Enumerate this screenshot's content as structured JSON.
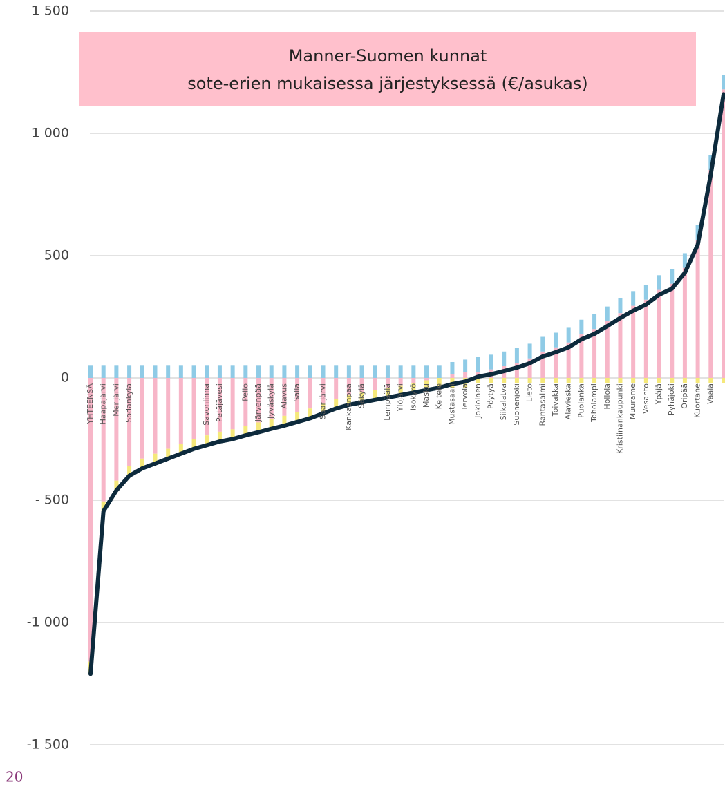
{
  "chart_data": {
    "type": "bar",
    "title_lines": [
      "Manner-Suomen kunnat",
      "sote-erien mukaisessa järjestyksessä (€/asukas)"
    ],
    "title_background": "#ffc0cc",
    "page_number": "20",
    "stacked": true,
    "categories": [
      "YHTEENSÄ",
      "Haapajärvi",
      "Merijärvi",
      "Sodankylä",
      null,
      null,
      null,
      null,
      null,
      "Savonlinna",
      "Petäjävesi",
      null,
      "Pello",
      "Järvenpää",
      "Jyväskylä",
      "Alavus",
      "Salla",
      null,
      "Saarijärvi",
      null,
      "Kankaanpää",
      "Säkylä",
      null,
      "Lempäälä",
      "Ylöjärvi",
      "Isokyrö",
      "Masku",
      "Keitele",
      "Mustasaari",
      "Tervola",
      "Jokioinen",
      "Pöytyä",
      "Siikalatva",
      "Suonenjoki",
      "Lieto",
      "Rantasalmi",
      "Toivakka",
      "Alavieska",
      "Puolanka",
      "Toholampi",
      "Hollola",
      "Kristiinankaupunki",
      "Muurame",
      "Vesanto",
      "Ypäjä",
      "Pyhäjoki",
      "Oripää",
      "Kuortane",
      "Vaala",
      null
    ],
    "series": [
      {
        "color": "#f7b6c8",
        "values": [
          -1160,
          -505,
          -420,
          -360,
          -330,
          -310,
          -290,
          -270,
          -250,
          -235,
          -220,
          -210,
          -195,
          -182,
          -168,
          -155,
          -140,
          -125,
          -105,
          -85,
          -70,
          -60,
          -50,
          -40,
          -30,
          -20,
          -10,
          0,
          15,
          25,
          25,
          35,
          48,
          62,
          80,
          108,
          125,
          145,
          178,
          200,
          232,
          265,
          295,
          320,
          360,
          385,
          450,
          565,
          850,
          1180
        ]
      },
      {
        "color": "#f5e87a",
        "values": [
          -50,
          -40,
          -40,
          -40,
          -40,
          -40,
          -40,
          -40,
          -40,
          -40,
          -40,
          -40,
          -40,
          -40,
          -40,
          -40,
          -40,
          -40,
          -40,
          -40,
          -40,
          -40,
          -40,
          -40,
          -40,
          -40,
          -40,
          -40,
          -40,
          -40,
          -20,
          -20,
          -20,
          -20,
          -20,
          -20,
          -20,
          -20,
          -20,
          -20,
          -20,
          -20,
          -20,
          -20,
          -20,
          -20,
          -20,
          -20,
          -20,
          -20
        ]
      },
      {
        "color": "#8fcbe6",
        "values": [
          50,
          50,
          50,
          50,
          50,
          50,
          50,
          50,
          50,
          50,
          50,
          50,
          50,
          50,
          50,
          50,
          50,
          50,
          50,
          50,
          50,
          50,
          50,
          50,
          50,
          50,
          50,
          50,
          50,
          50,
          60,
          60,
          60,
          60,
          60,
          60,
          60,
          60,
          60,
          60,
          60,
          60,
          60,
          60,
          60,
          60,
          60,
          60,
          60,
          60
        ]
      },
      {
        "type": "line",
        "color": "#0d2a3c",
        "values": [
          -1210,
          -545,
          -460,
          -400,
          -370,
          -350,
          -330,
          -310,
          -290,
          -275,
          -260,
          -250,
          -235,
          -222,
          -208,
          -195,
          -180,
          -165,
          -145,
          -125,
          -110,
          -100,
          -90,
          -80,
          -70,
          -60,
          -50,
          -40,
          -25,
          -15,
          5,
          15,
          28,
          42,
          60,
          88,
          105,
          125,
          158,
          180,
          212,
          245,
          275,
          300,
          340,
          365,
          430,
          545,
          830,
          1160
        ]
      }
    ],
    "ylim": [
      -1500,
      1500
    ],
    "yticks": [
      {
        "value": 1500,
        "label": "1 500"
      },
      {
        "value": 1000,
        "label": "1 000"
      },
      500,
      0,
      {
        "value": -500,
        "label": "- 500"
      },
      {
        "value": -1000,
        "label": "-1 000"
      },
      {
        "value": -1500,
        "label": "-1 500"
      }
    ],
    "grid": true,
    "negative_tick_color": "#e8131b"
  }
}
